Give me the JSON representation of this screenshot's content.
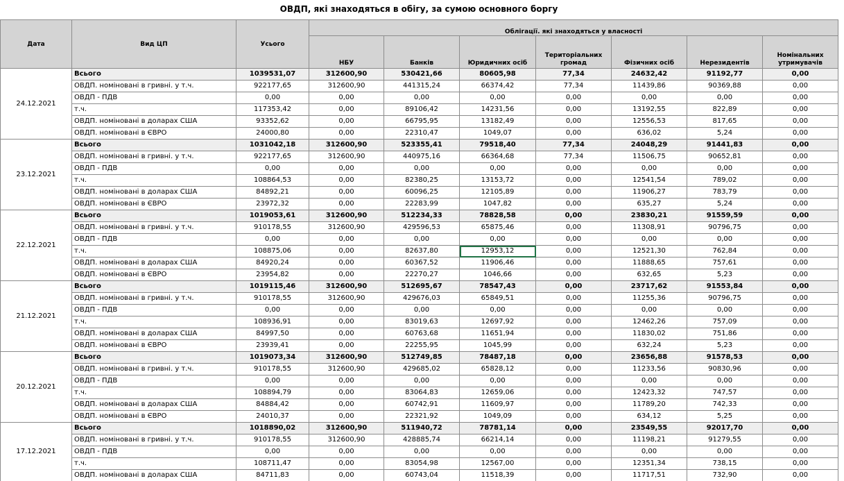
{
  "title": "ОВДП, які знаходяться в обігу, за сумою основного боргу",
  "table": {
    "headers": {
      "date": "Дата",
      "kind": "Вид ЦП",
      "total": "Усього",
      "owned_group": "Облігації. які знаходяться у власності",
      "owners": [
        "НБУ",
        "Банків",
        "Юридичних осіб",
        "Територіальних громад",
        "Фізичних осіб",
        "Нерезидентів",
        "Номінальних утримувачів"
      ]
    },
    "groups": [
      {
        "date": "24.12.2021",
        "rows": [
          {
            "label": "Всього",
            "cells": [
              "1039531,07",
              "312600,90",
              "530421,66",
              "80605,98",
              "77,34",
              "24632,42",
              "91192,77",
              "0,00"
            ]
          },
          {
            "label": "ОВДП. номіновані в гривні. у т.ч.",
            "cells": [
              "922177,65",
              "312600,90",
              "441315,24",
              "66374,42",
              "77,34",
              "11439,86",
              "90369,88",
              "0,00"
            ]
          },
          {
            "label": "ОВДП - ПДВ",
            "cells": [
              "0,00",
              "0,00",
              "0,00",
              "0,00",
              "0,00",
              "0,00",
              "0,00",
              "0,00"
            ]
          },
          {
            "label": "т.ч.",
            "cells": [
              "117353,42",
              "0,00",
              "89106,42",
              "14231,56",
              "0,00",
              "13192,55",
              "822,89",
              "0,00"
            ]
          },
          {
            "label": "ОВДП. номіновані в доларах США",
            "cells": [
              "93352,62",
              "0,00",
              "66795,95",
              "13182,49",
              "0,00",
              "12556,53",
              "817,65",
              "0,00"
            ]
          },
          {
            "label": "ОВДП. номіновані в ЄВРО",
            "cells": [
              "24000,80",
              "0,00",
              "22310,47",
              "1049,07",
              "0,00",
              "636,02",
              "5,24",
              "0,00"
            ]
          }
        ]
      },
      {
        "date": "23.12.2021",
        "rows": [
          {
            "label": "Всього",
            "cells": [
              "1031042,18",
              "312600,90",
              "523355,41",
              "79518,40",
              "77,34",
              "24048,29",
              "91441,83",
              "0,00"
            ]
          },
          {
            "label": "ОВДП. номіновані в гривні. у т.ч.",
            "cells": [
              "922177,65",
              "312600,90",
              "440975,16",
              "66364,68",
              "77,34",
              "11506,75",
              "90652,81",
              "0,00"
            ]
          },
          {
            "label": "ОВДП - ПДВ",
            "cells": [
              "0,00",
              "0,00",
              "0,00",
              "0,00",
              "0,00",
              "0,00",
              "0,00",
              "0,00"
            ]
          },
          {
            "label": "т.ч.",
            "cells": [
              "108864,53",
              "0,00",
              "82380,25",
              "13153,72",
              "0,00",
              "12541,54",
              "789,02",
              "0,00"
            ]
          },
          {
            "label": "ОВДП. номіновані в доларах США",
            "cells": [
              "84892,21",
              "0,00",
              "60096,25",
              "12105,89",
              "0,00",
              "11906,27",
              "783,79",
              "0,00"
            ]
          },
          {
            "label": "ОВДП. номіновані в ЄВРО",
            "cells": [
              "23972,32",
              "0,00",
              "22283,99",
              "1047,82",
              "0,00",
              "635,27",
              "5,24",
              "0,00"
            ]
          }
        ]
      },
      {
        "date": "22.12.2021",
        "rows": [
          {
            "label": "Всього",
            "cells": [
              "1019053,61",
              "312600,90",
              "512234,33",
              "78828,58",
              "0,00",
              "23830,21",
              "91559,59",
              "0,00"
            ]
          },
          {
            "label": "ОВДП. номіновані в гривні. у т.ч.",
            "cells": [
              "910178,55",
              "312600,90",
              "429596,53",
              "65875,46",
              "0,00",
              "11308,91",
              "90796,75",
              "0,00"
            ]
          },
          {
            "label": "ОВДП - ПДВ",
            "cells": [
              "0,00",
              "0,00",
              "0,00",
              "0,00",
              "0,00",
              "0,00",
              "0,00",
              "0,00"
            ]
          },
          {
            "label": "т.ч.",
            "cells": [
              "108875,06",
              "0,00",
              "82637,80",
              "12953,12",
              "0,00",
              "12521,30",
              "762,84",
              "0,00"
            ]
          },
          {
            "label": "ОВДП. номіновані в доларах США",
            "cells": [
              "84920,24",
              "0,00",
              "60367,52",
              "11906,46",
              "0,00",
              "11888,65",
              "757,61",
              "0,00"
            ]
          },
          {
            "label": "ОВДП. номіновані в ЄВРО",
            "cells": [
              "23954,82",
              "0,00",
              "22270,27",
              "1046,66",
              "0,00",
              "632,65",
              "5,23",
              "0,00"
            ]
          }
        ]
      },
      {
        "date": "21.12.2021",
        "rows": [
          {
            "label": "Всього",
            "cells": [
              "1019115,46",
              "312600,90",
              "512695,67",
              "78547,43",
              "0,00",
              "23717,62",
              "91553,84",
              "0,00"
            ]
          },
          {
            "label": "ОВДП. номіновані в гривні. у т.ч.",
            "cells": [
              "910178,55",
              "312600,90",
              "429676,03",
              "65849,51",
              "0,00",
              "11255,36",
              "90796,75",
              "0,00"
            ]
          },
          {
            "label": "ОВДП - ПДВ",
            "cells": [
              "0,00",
              "0,00",
              "0,00",
              "0,00",
              "0,00",
              "0,00",
              "0,00",
              "0,00"
            ]
          },
          {
            "label": "т.ч.",
            "cells": [
              "108936,91",
              "0,00",
              "83019,63",
              "12697,92",
              "0,00",
              "12462,26",
              "757,09",
              "0,00"
            ]
          },
          {
            "label": "ОВДП. номіновані в доларах США",
            "cells": [
              "84997,50",
              "0,00",
              "60763,68",
              "11651,94",
              "0,00",
              "11830,02",
              "751,86",
              "0,00"
            ]
          },
          {
            "label": "ОВДП. номіновані в ЄВРО",
            "cells": [
              "23939,41",
              "0,00",
              "22255,95",
              "1045,99",
              "0,00",
              "632,24",
              "5,23",
              "0,00"
            ]
          }
        ]
      },
      {
        "date": "20.12.2021",
        "rows": [
          {
            "label": "Всього",
            "cells": [
              "1019073,34",
              "312600,90",
              "512749,85",
              "78487,18",
              "0,00",
              "23656,88",
              "91578,53",
              "0,00"
            ]
          },
          {
            "label": "ОВДП. номіновані в гривні. у т.ч.",
            "cells": [
              "910178,55",
              "312600,90",
              "429685,02",
              "65828,12",
              "0,00",
              "11233,56",
              "90830,96",
              "0,00"
            ]
          },
          {
            "label": "ОВДП - ПДВ",
            "cells": [
              "0,00",
              "0,00",
              "0,00",
              "0,00",
              "0,00",
              "0,00",
              "0,00",
              "0,00"
            ]
          },
          {
            "label": "т.ч.",
            "cells": [
              "108894,79",
              "0,00",
              "83064,83",
              "12659,06",
              "0,00",
              "12423,32",
              "747,57",
              "0,00"
            ]
          },
          {
            "label": "ОВДП. номіновані в доларах США",
            "cells": [
              "84884,42",
              "0,00",
              "60742,91",
              "11609,97",
              "0,00",
              "11789,20",
              "742,33",
              "0,00"
            ]
          },
          {
            "label": "ОВДП. номіновані в ЄВРО",
            "cells": [
              "24010,37",
              "0,00",
              "22321,92",
              "1049,09",
              "0,00",
              "634,12",
              "5,25",
              "0,00"
            ]
          }
        ]
      },
      {
        "date": "17.12.2021",
        "rows": [
          {
            "label": "Всього",
            "cells": [
              "1018890,02",
              "312600,90",
              "511940,72",
              "78781,14",
              "0,00",
              "23549,55",
              "92017,70",
              "0,00"
            ]
          },
          {
            "label": "ОВДП. номіновані в гривні. у т.ч.",
            "cells": [
              "910178,55",
              "312600,90",
              "428885,74",
              "66214,14",
              "0,00",
              "11198,21",
              "91279,55",
              "0,00"
            ]
          },
          {
            "label": "ОВДП - ПДВ",
            "cells": [
              "0,00",
              "0,00",
              "0,00",
              "0,00",
              "0,00",
              "0,00",
              "0,00",
              "0,00"
            ]
          },
          {
            "label": "т.ч.",
            "cells": [
              "108711,47",
              "0,00",
              "83054,98",
              "12567,00",
              "0,00",
              "12351,34",
              "738,15",
              "0,00"
            ]
          },
          {
            "label": "ОВДП. номіновані в доларах США",
            "cells": [
              "84711,83",
              "0,00",
              "60743,04",
              "11518,39",
              "0,00",
              "11717,51",
              "732,90",
              "0,00"
            ]
          }
        ]
      }
    ]
  }
}
